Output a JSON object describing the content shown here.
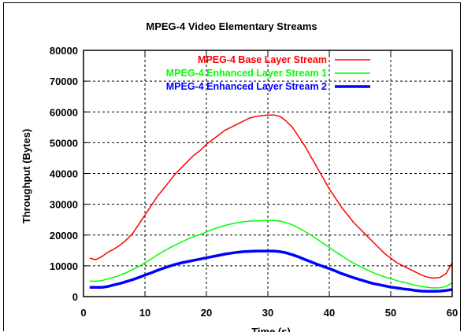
{
  "chart_data": {
    "type": "line",
    "title": "MPEG-4 Video Elementary Streams",
    "xlabel": "Time (s)",
    "ylabel": "Throughput (Bytes)",
    "xlim": [
      0,
      60
    ],
    "ylim": [
      0,
      80000
    ],
    "x_ticks": [
      0,
      10,
      20,
      30,
      40,
      50,
      60
    ],
    "y_ticks": [
      0,
      10000,
      20000,
      30000,
      40000,
      50000,
      60000,
      70000,
      80000
    ],
    "x_tick_labels": [
      "0",
      "10",
      "20",
      "30",
      "40",
      "50",
      "60"
    ],
    "y_tick_labels": [
      "0",
      "10000",
      "20000",
      "30000",
      "40000",
      "50000",
      "60000",
      "70000",
      "80000"
    ],
    "grid": true,
    "legend_position": "top-right",
    "series": [
      {
        "name": "MPEG-4 Base Layer Stream",
        "color": "#ff0000",
        "line_width": 1.5,
        "x": [
          1,
          2,
          3,
          4,
          5,
          6,
          7,
          8,
          9,
          10,
          11,
          12,
          13,
          14,
          15,
          16,
          17,
          18,
          19,
          20,
          21,
          22,
          23,
          24,
          25,
          26,
          27,
          28,
          29,
          30,
          31,
          32,
          33,
          34,
          35,
          36,
          37,
          38,
          39,
          40,
          41,
          42,
          43,
          44,
          45,
          46,
          47,
          48,
          49,
          50,
          51,
          52,
          53,
          54,
          55,
          56,
          57,
          58,
          59,
          60
        ],
        "values": [
          12500,
          12000,
          13000,
          14500,
          15500,
          16800,
          18500,
          20500,
          23500,
          26500,
          29500,
          32500,
          35000,
          37500,
          40000,
          42000,
          44000,
          46000,
          47500,
          49500,
          51000,
          52500,
          54000,
          55000,
          56000,
          57000,
          58000,
          58500,
          58800,
          59000,
          59000,
          58500,
          57000,
          55000,
          52000,
          49000,
          45500,
          42000,
          38500,
          35000,
          32000,
          29000,
          26500,
          24000,
          22000,
          20000,
          18000,
          16000,
          14000,
          12500,
          11000,
          10000,
          9000,
          8000,
          7000,
          6300,
          6000,
          6200,
          7500,
          11000
        ]
      },
      {
        "name": "MPEG-4 Enhanced Layer Stream 1",
        "color": "#00ff00",
        "line_width": 1.5,
        "x": [
          1,
          2,
          3,
          4,
          5,
          6,
          7,
          8,
          9,
          10,
          11,
          12,
          13,
          14,
          15,
          16,
          17,
          18,
          19,
          20,
          21,
          22,
          23,
          24,
          25,
          26,
          27,
          28,
          29,
          30,
          31,
          32,
          33,
          34,
          35,
          36,
          37,
          38,
          39,
          40,
          41,
          42,
          43,
          44,
          45,
          46,
          47,
          48,
          49,
          50,
          51,
          52,
          53,
          54,
          55,
          56,
          57,
          58,
          59,
          60
        ],
        "values": [
          5000,
          5000,
          5200,
          5800,
          6300,
          7000,
          7800,
          8800,
          9800,
          11000,
          12200,
          13500,
          14700,
          15800,
          16800,
          17800,
          18700,
          19500,
          20200,
          21000,
          21800,
          22500,
          23100,
          23600,
          24000,
          24300,
          24500,
          24600,
          24700,
          24800,
          24700,
          24500,
          24000,
          23300,
          22300,
          21200,
          20000,
          18700,
          17300,
          16000,
          14600,
          13300,
          12000,
          10800,
          9800,
          8800,
          7900,
          7100,
          6400,
          5800,
          5200,
          4700,
          4200,
          3700,
          3300,
          3000,
          2800,
          2900,
          3300,
          4500
        ]
      },
      {
        "name": "MPEG-4 Enhanced Layer Stream 2",
        "color": "#0000ff",
        "line_width": 3.5,
        "x": [
          1,
          2,
          3,
          4,
          5,
          6,
          7,
          8,
          9,
          10,
          11,
          12,
          13,
          14,
          15,
          16,
          17,
          18,
          19,
          20,
          21,
          22,
          23,
          24,
          25,
          26,
          27,
          28,
          29,
          30,
          31,
          32,
          33,
          34,
          35,
          36,
          37,
          38,
          39,
          40,
          41,
          42,
          43,
          44,
          45,
          46,
          47,
          48,
          49,
          50,
          51,
          52,
          53,
          54,
          55,
          56,
          57,
          58,
          59,
          60
        ],
        "values": [
          3000,
          3000,
          3000,
          3300,
          3800,
          4300,
          4900,
          5500,
          6200,
          7000,
          7700,
          8500,
          9200,
          9900,
          10500,
          11000,
          11400,
          11800,
          12200,
          12600,
          13000,
          13400,
          13800,
          14100,
          14400,
          14600,
          14700,
          14800,
          14800,
          14800,
          14800,
          14600,
          14200,
          13600,
          12900,
          12100,
          11300,
          10500,
          9800,
          9100,
          8300,
          7500,
          6800,
          6100,
          5500,
          4900,
          4300,
          3900,
          3500,
          3100,
          2800,
          2500,
          2300,
          2000,
          1800,
          1700,
          1700,
          1800,
          2000,
          2300
        ]
      }
    ]
  }
}
